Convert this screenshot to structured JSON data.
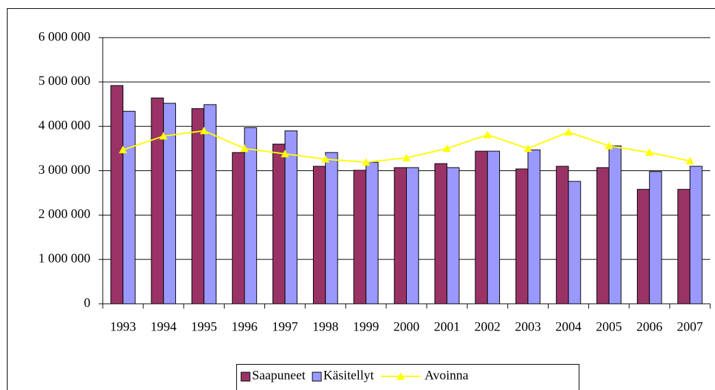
{
  "chart_data": {
    "type": "bar",
    "categories": [
      "1993",
      "1994",
      "1995",
      "1996",
      "1997",
      "1998",
      "1999",
      "2000",
      "2001",
      "2002",
      "2003",
      "2004",
      "2005",
      "2006",
      "2007"
    ],
    "series": [
      {
        "name": "Saapuneet",
        "type": "bar",
        "color": "#993366",
        "values": [
          4920000,
          4640000,
          4400000,
          3410000,
          3600000,
          3100000,
          3010000,
          3070000,
          3160000,
          3440000,
          3040000,
          3100000,
          3070000,
          2580000,
          2580000
        ]
      },
      {
        "name": "Käsitellyt",
        "type": "bar",
        "color": "#9999ff",
        "values": [
          4340000,
          4520000,
          4490000,
          3970000,
          3900000,
          3410000,
          3190000,
          3070000,
          3070000,
          3440000,
          3470000,
          2760000,
          3560000,
          2980000,
          3100000
        ]
      },
      {
        "name": "Avoinna",
        "type": "line",
        "color": "#ffff00",
        "values": [
          3470000,
          3780000,
          3900000,
          3500000,
          3380000,
          3260000,
          3190000,
          3290000,
          3500000,
          3810000,
          3500000,
          3870000,
          3560000,
          3410000,
          3220000
        ]
      }
    ],
    "ylim": [
      0,
      6000000
    ],
    "yticks": [
      {
        "value": 0,
        "label": "0"
      },
      {
        "value": 1000000,
        "label": "1 000 000"
      },
      {
        "value": 2000000,
        "label": "2 000 000"
      },
      {
        "value": 3000000,
        "label": "3 000 000"
      },
      {
        "value": 4000000,
        "label": "4 000 000"
      },
      {
        "value": 5000000,
        "label": "5 000 000"
      },
      {
        "value": 6000000,
        "label": "6 000 000"
      }
    ],
    "grid": true,
    "legend": "bottom"
  }
}
